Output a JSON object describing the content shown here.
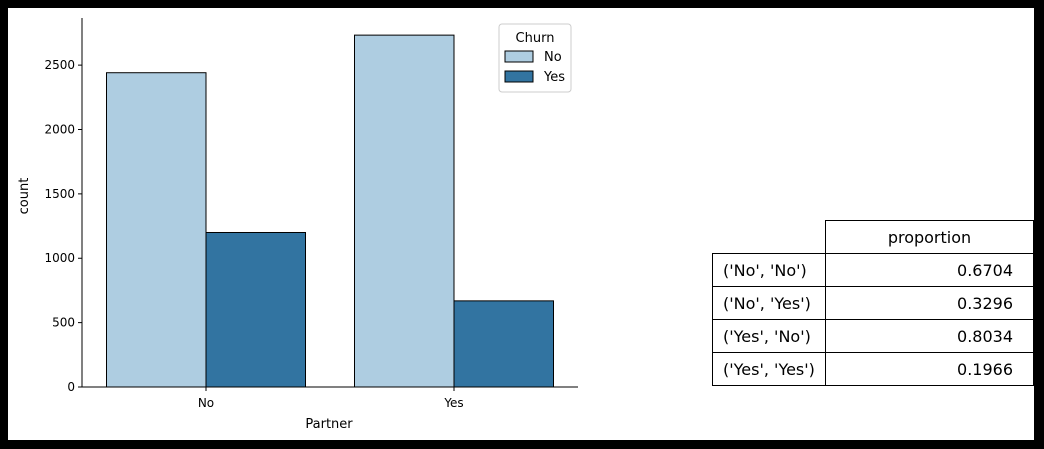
{
  "chart_data": {
    "type": "bar",
    "xlabel": "Partner",
    "ylabel": "count",
    "categories": [
      "No",
      "Yes"
    ],
    "ylim": [
      0,
      2866
    ],
    "yticks": [
      0,
      500,
      1000,
      1500,
      2000,
      2500
    ],
    "grid": false,
    "legend": {
      "title": "Churn",
      "placement": "top-right"
    },
    "series": [
      {
        "name": "No",
        "color": "#aecde1",
        "values": [
          2441,
          2733
        ]
      },
      {
        "name": "Yes",
        "color": "#3274a1",
        "values": [
          1200,
          669
        ]
      }
    ]
  },
  "table": {
    "column_header": "proportion",
    "rows": [
      {
        "label": "('No', 'No')",
        "value": "0.6704"
      },
      {
        "label": "('No', 'Yes')",
        "value": "0.3296"
      },
      {
        "label": "('Yes', 'No')",
        "value": "0.8034"
      },
      {
        "label": "('Yes', 'Yes')",
        "value": "0.1966"
      }
    ]
  }
}
